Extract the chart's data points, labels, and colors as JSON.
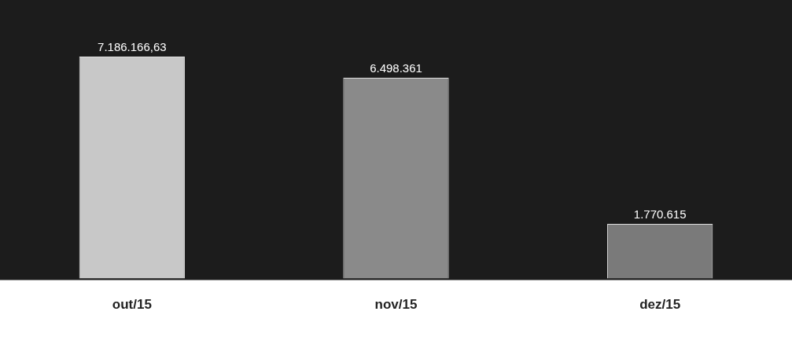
{
  "chart_data": {
    "type": "bar",
    "categories": [
      "out/15",
      "nov/15",
      "dez/15"
    ],
    "values": [
      7186166.63,
      6498361,
      1770615
    ],
    "colors": [
      "#c8c8c8",
      "#8a8a8a",
      "#7a7a7a"
    ],
    "value_labels": [
      "7.186.166,63",
      "6.498.361",
      "1.770.615"
    ],
    "legend": false
  }
}
